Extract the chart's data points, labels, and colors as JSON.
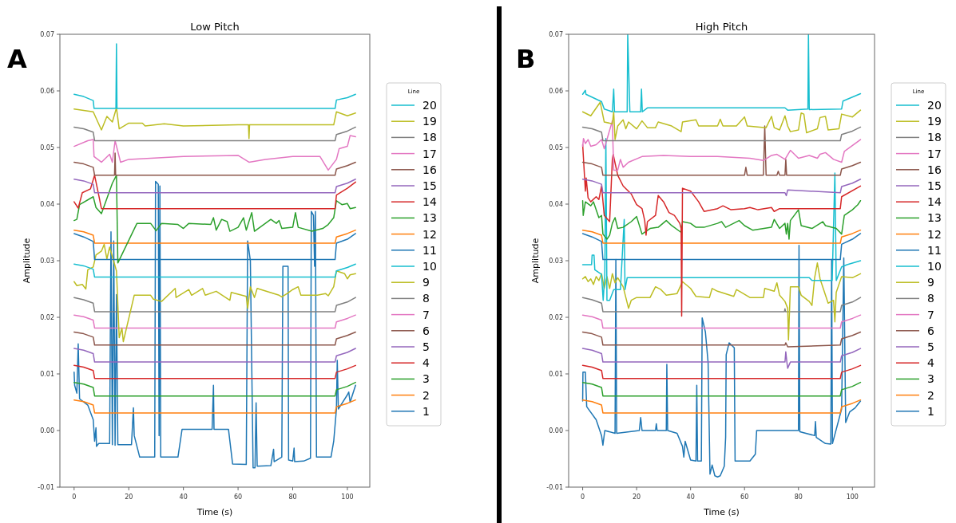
{
  "chart_data": [
    {
      "type": "line",
      "title": "Low Pitch",
      "xlabel": "Time (s)",
      "ylabel": "Amplitude",
      "annotations": [
        "A"
      ],
      "legend": "right",
      "legend_title": "Line",
      "xlim": [
        -5.2,
        108.2
      ],
      "ylim": [
        -0.01,
        0.07
      ],
      "xticks": [
        0,
        20,
        40,
        60,
        80,
        100
      ],
      "yticks": [
        -0.01,
        {
          "value": 0,
          "label": "0.00"
        },
        0.01,
        0.02,
        0.03,
        0.04,
        0.05,
        0.06,
        0.07
      ],
      "series": [
        {
          "name": "1",
          "color": "#1f77b4",
          "x": [
            0,
            0.2,
            1,
            1.5,
            2,
            5,
            7,
            7.5,
            8,
            8.2,
            9,
            13,
            13.5,
            14,
            14.5,
            15,
            15.5,
            16,
            21,
            21.7,
            22,
            24,
            29.5,
            29.8,
            30.8,
            31.1,
            31.4,
            31.7,
            38,
            39.5,
            50.5,
            51,
            51.2,
            56.5,
            58,
            63,
            63.5,
            64.5,
            65.5,
            66.2,
            66.6,
            67,
            72,
            73,
            73.2,
            76,
            76.4,
            78.3,
            78.5,
            80,
            80.5,
            80.7,
            84,
            86.5,
            86.8,
            87.6,
            88,
            88.3,
            88.7,
            94,
            95,
            96,
            96.3,
            96.7,
            100,
            100.5,
            101,
            103
          ],
          "values": [
            0.0103,
            0.008,
            0.0066,
            0.0153,
            0.0056,
            0.0045,
            0.0019,
            -0.0019,
            0.0005,
            -0.0028,
            -0.0023,
            -0.0023,
            0.0351,
            -0.0025,
            0.0335,
            -0.0026,
            0.024,
            -0.0025,
            -0.0025,
            0.004,
            -0.0009,
            -0.0047,
            -0.0047,
            0.044,
            0.0435,
            -0.0009,
            0.0432,
            -0.0047,
            -0.0047,
            0.0002,
            0.0002,
            0.008,
            0.0002,
            0.0002,
            -0.0059,
            -0.006,
            0.0335,
            0.03,
            -0.0066,
            -0.0066,
            0.0049,
            -0.0063,
            -0.0062,
            -0.0033,
            -0.0055,
            -0.0047,
            0.029,
            0.029,
            -0.0052,
            -0.0054,
            -0.0031,
            -0.0055,
            -0.0054,
            -0.0049,
            0.0387,
            0.038,
            0.029,
            0.0387,
            -0.0047,
            -0.0047,
            -0.0019,
            0.0038,
            0.0124,
            0.0038,
            0.0063,
            0.0068,
            0.005,
            0.008
          ]
        },
        {
          "name": "2",
          "color": "#ff7f0e",
          "x": [
            0,
            3.5,
            7,
            7.5,
            95.5,
            96,
            100,
            103
          ],
          "values": [
            0.0054,
            0.0051,
            0.0045,
            0.0031,
            0.0031,
            0.0042,
            0.0048,
            0.0054
          ]
        },
        {
          "name": "3",
          "color": "#2ca02c",
          "x": [
            0,
            3.5,
            7,
            7.5,
            95.5,
            96,
            100,
            103
          ],
          "values": [
            0.0085,
            0.0082,
            0.0076,
            0.0061,
            0.0061,
            0.0072,
            0.0078,
            0.0085
          ]
        },
        {
          "name": "4",
          "color": "#d62728",
          "x": [
            0,
            3.5,
            7,
            7.5,
            95.5,
            96,
            100,
            103
          ],
          "values": [
            0.0115,
            0.0112,
            0.0106,
            0.0092,
            0.0092,
            0.0103,
            0.0109,
            0.0115
          ]
        },
        {
          "name": "5",
          "color": "#9467bd",
          "x": [
            0,
            3.5,
            7,
            7.5,
            95.5,
            96,
            100,
            103
          ],
          "values": [
            0.0145,
            0.0142,
            0.0136,
            0.0121,
            0.0121,
            0.0132,
            0.0138,
            0.0145
          ]
        },
        {
          "name": "6",
          "color": "#8c564b",
          "x": [
            0,
            3.5,
            7,
            7.5,
            95.5,
            96,
            100,
            103
          ],
          "values": [
            0.0174,
            0.0171,
            0.0165,
            0.0151,
            0.0151,
            0.0162,
            0.0168,
            0.0174
          ]
        },
        {
          "name": "7",
          "color": "#e377c2",
          "x": [
            0,
            3.5,
            7,
            7.5,
            95.5,
            96,
            100,
            103
          ],
          "values": [
            0.0204,
            0.0201,
            0.0195,
            0.0181,
            0.0181,
            0.0192,
            0.0198,
            0.0204
          ]
        },
        {
          "name": "8",
          "color": "#7f7f7f",
          "x": [
            0,
            3.5,
            7,
            7.5,
            95.5,
            96,
            100,
            103
          ],
          "values": [
            0.0235,
            0.0231,
            0.0225,
            0.021,
            0.021,
            0.0221,
            0.0227,
            0.0235
          ]
        },
        {
          "name": "9",
          "color": "#bcbd22",
          "x": [
            0,
            1,
            3,
            4.3,
            5,
            7,
            8,
            10,
            11,
            12,
            13,
            15.5,
            16.5,
            17.5,
            18,
            22,
            28,
            29,
            32,
            37,
            37.3,
            42,
            43,
            47,
            48,
            52,
            57,
            57.5,
            63,
            63.5,
            64.5,
            66,
            67,
            75,
            76,
            78,
            80,
            82,
            83,
            89,
            92,
            93,
            95,
            96,
            99,
            100,
            101,
            103
          ],
          "values": [
            0.0263,
            0.0256,
            0.0258,
            0.025,
            0.0284,
            0.0289,
            0.031,
            0.0317,
            0.0329,
            0.0303,
            0.0324,
            0.0282,
            0.0164,
            0.0181,
            0.0157,
            0.0239,
            0.0239,
            0.0232,
            0.0228,
            0.0251,
            0.0235,
            0.0249,
            0.0239,
            0.0251,
            0.0239,
            0.0246,
            0.023,
            0.0244,
            0.0237,
            0.0216,
            0.0254,
            0.0235,
            0.0251,
            0.0239,
            0.0236,
            0.0242,
            0.0249,
            0.0254,
            0.0239,
            0.0239,
            0.0242,
            0.0238,
            0.0254,
            0.0282,
            0.0277,
            0.0268,
            0.0275,
            0.0277
          ]
        },
        {
          "name": "10",
          "color": "#17becf",
          "x": [
            0,
            3.5,
            7,
            7.5,
            95.5,
            96,
            100,
            103
          ],
          "values": [
            0.0294,
            0.0291,
            0.0285,
            0.0271,
            0.0271,
            0.0282,
            0.0288,
            0.0294
          ]
        },
        {
          "name": "11",
          "color": "#1f77b4",
          "x": [
            0,
            3.5,
            7,
            7.5,
            95.5,
            96,
            100,
            103
          ],
          "values": [
            0.0348,
            0.0342,
            0.0334,
            0.0302,
            0.0302,
            0.0331,
            0.0338,
            0.0348
          ]
        },
        {
          "name": "12",
          "color": "#ff7f0e",
          "x": [
            0,
            3.5,
            7,
            7.5,
            95.5,
            96,
            100,
            103
          ],
          "values": [
            0.0354,
            0.0351,
            0.0345,
            0.0331,
            0.0331,
            0.0342,
            0.0348,
            0.0354
          ]
        },
        {
          "name": "13",
          "color": "#2ca02c",
          "x": [
            0,
            1,
            2,
            7,
            8,
            10,
            14,
            15.5,
            16,
            23,
            28,
            30,
            32,
            38,
            40,
            42,
            50,
            51,
            52,
            54,
            56,
            57,
            60,
            62,
            63,
            65,
            66,
            70,
            72,
            74,
            75,
            76,
            80,
            81,
            82,
            87,
            91,
            93,
            95,
            96,
            98,
            100,
            101,
            103
          ],
          "values": [
            0.0371,
            0.0373,
            0.0399,
            0.0413,
            0.0394,
            0.0383,
            0.0437,
            0.0451,
            0.0296,
            0.0366,
            0.0366,
            0.0353,
            0.0366,
            0.0364,
            0.0357,
            0.0366,
            0.0364,
            0.0376,
            0.0354,
            0.0373,
            0.0369,
            0.0352,
            0.0359,
            0.0376,
            0.0354,
            0.0385,
            0.0352,
            0.0366,
            0.0373,
            0.0366,
            0.0371,
            0.0357,
            0.0359,
            0.0385,
            0.0359,
            0.0352,
            0.0357,
            0.0364,
            0.0376,
            0.0406,
            0.0399,
            0.0401,
            0.0392,
            0.0394
          ]
        },
        {
          "name": "14",
          "color": "#d62728",
          "x": [
            0,
            1.5,
            3,
            6,
            7.5,
            9,
            10,
            95.5,
            96,
            100,
            103
          ],
          "values": [
            0.0404,
            0.0393,
            0.042,
            0.0427,
            0.0451,
            0.0416,
            0.0392,
            0.0392,
            0.0416,
            0.0428,
            0.0439
          ]
        },
        {
          "name": "15",
          "color": "#9467bd",
          "x": [
            0,
            3.5,
            7,
            7.5,
            95.5,
            96,
            100,
            103
          ],
          "values": [
            0.0444,
            0.0441,
            0.0435,
            0.042,
            0.042,
            0.0431,
            0.0437,
            0.0444
          ]
        },
        {
          "name": "16",
          "color": "#8c564b",
          "x": [
            0,
            3.5,
            7,
            7.5,
            14.8,
            15,
            15.2,
            95.5,
            96,
            100,
            103
          ],
          "values": [
            0.0474,
            0.0471,
            0.0465,
            0.0451,
            0.0451,
            0.049,
            0.0451,
            0.0451,
            0.0462,
            0.0468,
            0.0474
          ]
        },
        {
          "name": "17",
          "color": "#e377c2",
          "x": [
            0,
            5,
            7,
            7.3,
            10,
            13,
            14,
            15,
            17,
            20,
            40,
            60,
            64,
            70,
            80,
            90,
            93,
            96,
            97,
            100,
            101,
            103
          ],
          "values": [
            0.0502,
            0.0512,
            0.0514,
            0.0484,
            0.0474,
            0.0488,
            0.0474,
            0.0512,
            0.0474,
            0.0479,
            0.0484,
            0.0486,
            0.0474,
            0.0479,
            0.0484,
            0.0484,
            0.046,
            0.0479,
            0.0498,
            0.0502,
            0.0521,
            0.0519
          ]
        },
        {
          "name": "18",
          "color": "#7f7f7f",
          "x": [
            0,
            3.5,
            7,
            7.5,
            95.5,
            96,
            100,
            103
          ],
          "values": [
            0.0536,
            0.0533,
            0.0527,
            0.0512,
            0.0512,
            0.0523,
            0.0529,
            0.0536
          ]
        },
        {
          "name": "19",
          "color": "#bcbd22",
          "x": [
            0,
            7,
            10,
            12,
            14,
            15.5,
            16.5,
            20,
            25,
            26,
            33,
            40,
            60,
            63.8,
            64,
            64.2,
            95,
            96,
            100,
            103
          ],
          "values": [
            0.0568,
            0.0563,
            0.0531,
            0.0555,
            0.0545,
            0.057,
            0.0533,
            0.0543,
            0.0543,
            0.0538,
            0.0542,
            0.0538,
            0.054,
            0.054,
            0.0516,
            0.054,
            0.054,
            0.0563,
            0.0556,
            0.0561
          ]
        },
        {
          "name": "20",
          "color": "#17becf",
          "x": [
            0,
            3.5,
            7,
            7.3,
            7.5,
            15.3,
            15.5,
            15.7,
            95.5,
            96,
            100,
            103
          ],
          "values": [
            0.0594,
            0.059,
            0.0583,
            0.0569,
            0.0569,
            0.0569,
            0.0683,
            0.0569,
            0.0569,
            0.0584,
            0.0588,
            0.0594
          ]
        }
      ]
    },
    {
      "type": "line",
      "title": "High Pitch",
      "xlabel": "Time (s)",
      "ylabel": "Amplitude",
      "annotations": [
        "B"
      ],
      "legend": "right",
      "legend_title": "Line",
      "xlim": [
        -5.2,
        108.2
      ],
      "ylim": [
        -0.01,
        0.07
      ],
      "xticks": [
        0,
        20,
        40,
        60,
        80,
        100
      ],
      "yticks": [
        -0.01,
        {
          "value": 0,
          "label": "0.00"
        },
        0.01,
        0.02,
        0.03,
        0.04,
        0.05,
        0.06,
        0.07
      ],
      "series": [
        {
          "name": "1",
          "color": "#1f77b4",
          "x": [
            0,
            0.1,
            1,
            1.5,
            5,
            7,
            7.5,
            8.2,
            12,
            12.3,
            12.6,
            21,
            21.5,
            22,
            27,
            27.3,
            27.6,
            31,
            31.2,
            31.5,
            35,
            37,
            37.5,
            38,
            40,
            42,
            42.3,
            42.6,
            44,
            44.3,
            45.5,
            46.5,
            47.2,
            48,
            49,
            50,
            51,
            52.5,
            53,
            53.2,
            54.3,
            56.2,
            56.5,
            62,
            64,
            64.5,
            80,
            80.2,
            80.5,
            86,
            86.3,
            86.6,
            90,
            92,
            92.3,
            92.6,
            96,
            96.8,
            97.5,
            99,
            101,
            103
          ],
          "values": [
            0.0052,
            0.0103,
            0.0103,
            0.0042,
            0.0019,
            -0.0009,
            -0.0026,
            0.0,
            -0.0005,
            0.0302,
            -0.0005,
            0.0,
            0.0023,
            0.0,
            0.0,
            0.0012,
            0.0,
            0.0,
            0.0117,
            0.0,
            -0.0005,
            -0.0028,
            -0.0047,
            -0.0019,
            -0.0052,
            -0.0054,
            0.008,
            -0.0054,
            -0.0054,
            0.0199,
            0.0174,
            0.012,
            -0.0077,
            -0.0061,
            -0.008,
            -0.0082,
            -0.008,
            -0.0063,
            -0.0012,
            0.0134,
            0.0155,
            0.0146,
            -0.0054,
            -0.0054,
            -0.0042,
            0.0,
            0.0,
            0.0327,
            -0.0002,
            -0.0009,
            0.0016,
            -0.0012,
            -0.0023,
            -0.0024,
            0.0302,
            -0.0023,
            0.0038,
            0.0305,
            0.0014,
            0.0033,
            0.004,
            0.0052
          ]
        },
        {
          "name": "2",
          "color": "#ff7f0e",
          "x": [
            0,
            3.5,
            7,
            7.5,
            95.5,
            96,
            100,
            103
          ],
          "values": [
            0.0054,
            0.0051,
            0.0045,
            0.0031,
            0.0031,
            0.0042,
            0.0048,
            0.0054
          ]
        },
        {
          "name": "3",
          "color": "#2ca02c",
          "x": [
            0,
            3.5,
            7,
            7.5,
            95.5,
            96,
            100,
            103
          ],
          "values": [
            0.0085,
            0.0082,
            0.0076,
            0.0061,
            0.0061,
            0.0072,
            0.0078,
            0.0085
          ]
        },
        {
          "name": "4",
          "color": "#d62728",
          "x": [
            0,
            3.5,
            7,
            7.5,
            95.5,
            96,
            100,
            103
          ],
          "values": [
            0.0115,
            0.0112,
            0.0106,
            0.0092,
            0.0092,
            0.0103,
            0.0109,
            0.0115
          ]
        },
        {
          "name": "5",
          "color": "#9467bd",
          "x": [
            0,
            3.5,
            7,
            7.5,
            75,
            75.3,
            75.7,
            76,
            77,
            95.5,
            96,
            100,
            103
          ],
          "values": [
            0.0145,
            0.0142,
            0.0136,
            0.0121,
            0.0121,
            0.0139,
            0.0121,
            0.011,
            0.0121,
            0.0121,
            0.0132,
            0.0138,
            0.0145
          ]
        },
        {
          "name": "6",
          "color": "#8c564b",
          "x": [
            0,
            3.5,
            7,
            7.5,
            75,
            75.3,
            76,
            95.5,
            96,
            100,
            103
          ],
          "values": [
            0.0174,
            0.0171,
            0.0165,
            0.0151,
            0.0151,
            0.0155,
            0.0148,
            0.0151,
            0.0162,
            0.0168,
            0.0174
          ]
        },
        {
          "name": "7",
          "color": "#e377c2",
          "x": [
            0,
            3.5,
            7,
            7.5,
            95.5,
            96,
            100,
            103
          ],
          "values": [
            0.0204,
            0.0201,
            0.0195,
            0.0181,
            0.0181,
            0.0192,
            0.0198,
            0.0204
          ]
        },
        {
          "name": "8",
          "color": "#7f7f7f",
          "x": [
            0,
            3.5,
            7,
            7.5,
            74.8,
            75,
            75.2,
            95.5,
            96,
            100,
            103
          ],
          "values": [
            0.0235,
            0.0231,
            0.0225,
            0.021,
            0.021,
            0.0215,
            0.021,
            0.021,
            0.0221,
            0.0227,
            0.0235
          ]
        },
        {
          "name": "9",
          "color": "#bcbd22",
          "x": [
            0,
            1,
            2,
            3,
            4,
            5,
            6,
            7,
            8,
            9,
            10,
            11,
            12,
            13,
            15,
            17,
            18,
            20,
            25,
            27,
            29,
            31,
            35,
            37,
            40,
            42,
            47,
            48,
            50,
            56,
            57,
            62,
            67,
            67.5,
            71,
            72,
            73,
            75,
            76,
            76.3,
            77,
            80,
            81,
            84,
            85,
            86,
            87,
            88,
            91,
            93,
            93.5,
            94,
            96,
            100,
            103
          ],
          "values": [
            0.0268,
            0.0272,
            0.0263,
            0.0268,
            0.0258,
            0.0272,
            0.0265,
            0.0277,
            0.0251,
            0.0272,
            0.0251,
            0.0277,
            0.0261,
            0.027,
            0.0254,
            0.0216,
            0.023,
            0.0235,
            0.0235,
            0.0254,
            0.0249,
            0.0239,
            0.0242,
            0.0263,
            0.0251,
            0.0237,
            0.0235,
            0.0251,
            0.0246,
            0.0237,
            0.0249,
            0.0235,
            0.0235,
            0.0251,
            0.0246,
            0.0261,
            0.0239,
            0.0228,
            0.0216,
            0.016,
            0.0254,
            0.0254,
            0.0239,
            0.0228,
            0.0221,
            0.027,
            0.0296,
            0.0268,
            0.0225,
            0.023,
            0.0192,
            0.0244,
            0.0272,
            0.027,
            0.0277
          ]
        },
        {
          "name": "10",
          "color": "#17becf",
          "x": [
            0,
            3.3,
            3.5,
            4.2,
            4.5,
            7,
            7.6,
            8.2,
            8.6,
            9,
            10,
            11.5,
            14,
            15.4,
            15.7,
            16.5,
            84,
            85,
            92.5,
            93.5,
            94,
            96,
            98,
            103
          ],
          "values": [
            0.0293,
            0.0293,
            0.031,
            0.031,
            0.0284,
            0.0276,
            0.023,
            0.0275,
            0.0516,
            0.023,
            0.023,
            0.0249,
            0.0249,
            0.0373,
            0.0249,
            0.027,
            0.027,
            0.0265,
            0.0265,
            0.0455,
            0.0265,
            0.0289,
            0.0293,
            0.03
          ]
        },
        {
          "name": "11",
          "color": "#1f77b4",
          "x": [
            0,
            3.5,
            7,
            7.5,
            95.5,
            96,
            100,
            103
          ],
          "values": [
            0.0348,
            0.0342,
            0.0334,
            0.0302,
            0.0302,
            0.0329,
            0.0338,
            0.0348
          ]
        },
        {
          "name": "12",
          "color": "#ff7f0e",
          "x": [
            0,
            3.5,
            7,
            7.5,
            95.5,
            96,
            100,
            103
          ],
          "values": [
            0.0354,
            0.0351,
            0.0345,
            0.0331,
            0.0331,
            0.0342,
            0.0348,
            0.0354
          ]
        },
        {
          "name": "13",
          "color": "#2ca02c",
          "x": [
            0,
            0.2,
            1,
            3,
            4,
            6,
            7,
            7.5,
            9,
            10,
            11,
            12,
            13,
            15,
            18,
            20,
            22,
            25,
            28,
            31,
            33,
            36.5,
            37,
            40,
            42,
            45,
            50,
            51.5,
            53,
            58,
            60,
            63,
            70,
            71,
            73,
            75,
            75.5,
            76,
            76.5,
            77,
            80,
            81,
            85,
            89,
            90,
            94,
            96,
            97,
            100,
            102,
            103
          ],
          "values": [
            0.0406,
            0.038,
            0.0404,
            0.0397,
            0.0404,
            0.0376,
            0.038,
            0.0347,
            0.0338,
            0.0345,
            0.0366,
            0.0376,
            0.0357,
            0.0359,
            0.0369,
            0.0378,
            0.0347,
            0.0357,
            0.0359,
            0.0371,
            0.0362,
            0.035,
            0.0369,
            0.0366,
            0.0359,
            0.0359,
            0.0366,
            0.0369,
            0.0359,
            0.0371,
            0.0362,
            0.0354,
            0.0359,
            0.0373,
            0.0357,
            0.0366,
            0.0347,
            0.0366,
            0.0338,
            0.0371,
            0.039,
            0.0362,
            0.0357,
            0.0369,
            0.0362,
            0.0357,
            0.0347,
            0.038,
            0.039,
            0.0399,
            0.0406
          ]
        },
        {
          "name": "14",
          "color": "#d62728",
          "x": [
            0,
            1,
            1.3,
            2,
            3,
            5,
            6,
            7,
            8,
            10,
            11,
            11.3,
            13,
            15,
            18,
            20,
            22,
            23,
            23.5,
            24,
            27,
            28,
            30,
            32,
            34,
            36,
            36.5,
            36.7,
            37,
            40,
            43,
            45,
            50,
            52,
            55,
            60,
            62,
            65,
            70,
            71,
            73,
            95.5,
            96,
            103
          ],
          "values": [
            0.0505,
            0.0423,
            0.0446,
            0.0411,
            0.0404,
            0.0413,
            0.0408,
            0.0432,
            0.038,
            0.0369,
            0.0479,
            0.0488,
            0.0451,
            0.0432,
            0.0418,
            0.0399,
            0.0392,
            0.0371,
            0.0345,
            0.0369,
            0.038,
            0.0415,
            0.0404,
            0.0385,
            0.038,
            0.0366,
            0.0357,
            0.0202,
            0.0428,
            0.0423,
            0.0404,
            0.0387,
            0.0392,
            0.0397,
            0.039,
            0.0392,
            0.0394,
            0.039,
            0.0394,
            0.0387,
            0.0392,
            0.0392,
            0.0413,
            0.0432
          ]
        },
        {
          "name": "15",
          "color": "#9467bd",
          "x": [
            0,
            3.5,
            7,
            7.5,
            75,
            75.5,
            76,
            95.5,
            96,
            100,
            103
          ],
          "values": [
            0.0444,
            0.0441,
            0.0435,
            0.042,
            0.042,
            0.0415,
            0.0425,
            0.042,
            0.0431,
            0.0437,
            0.0444
          ]
        },
        {
          "name": "16",
          "color": "#8c564b",
          "x": [
            0,
            3.5,
            7,
            7.5,
            60,
            60.5,
            61,
            67,
            67.5,
            68,
            72,
            72.5,
            73,
            75,
            75.3,
            75.6,
            95.5,
            96,
            100,
            103
          ],
          "values": [
            0.0474,
            0.0471,
            0.0465,
            0.0451,
            0.0451,
            0.0465,
            0.0451,
            0.0451,
            0.0538,
            0.0451,
            0.0451,
            0.0458,
            0.0451,
            0.0451,
            0.0479,
            0.0451,
            0.0451,
            0.0462,
            0.0468,
            0.0474
          ]
        },
        {
          "name": "17",
          "color": "#e377c2",
          "x": [
            0,
            0.3,
            1,
            2,
            3,
            5,
            7,
            8,
            11,
            11.5,
            13,
            14,
            15,
            17,
            22,
            30,
            40,
            50,
            62,
            67,
            70,
            72,
            75,
            77,
            80,
            84,
            87,
            88,
            90,
            93,
            96,
            97,
            103
          ],
          "values": [
            0.0502,
            0.0516,
            0.0507,
            0.0514,
            0.0502,
            0.0505,
            0.0514,
            0.0498,
            0.0547,
            0.046,
            0.046,
            0.0479,
            0.0465,
            0.0474,
            0.0484,
            0.0486,
            0.0484,
            0.0484,
            0.0481,
            0.0477,
            0.0486,
            0.0488,
            0.0479,
            0.0495,
            0.0481,
            0.0486,
            0.0481,
            0.0488,
            0.0491,
            0.0479,
            0.0474,
            0.0493,
            0.0514
          ]
        },
        {
          "name": "18",
          "color": "#7f7f7f",
          "x": [
            0,
            3.5,
            7,
            7.5,
            95.5,
            96,
            100,
            103
          ],
          "values": [
            0.0536,
            0.0533,
            0.0527,
            0.0512,
            0.0512,
            0.0523,
            0.0529,
            0.0536
          ]
        },
        {
          "name": "19",
          "color": "#bcbd22",
          "x": [
            0,
            3,
            6.5,
            8,
            11,
            11.5,
            12,
            13,
            15,
            16,
            17,
            20,
            22,
            24,
            27,
            28,
            33,
            36.5,
            37,
            42,
            43,
            50,
            51,
            52,
            57,
            60,
            61,
            68,
            70,
            71,
            73,
            75,
            76,
            77,
            80,
            81,
            82,
            83,
            87,
            88,
            90,
            91,
            95,
            96,
            100,
            103
          ],
          "values": [
            0.0563,
            0.0556,
            0.058,
            0.0545,
            0.0542,
            0.0563,
            0.0514,
            0.0538,
            0.0549,
            0.0533,
            0.0545,
            0.0533,
            0.0547,
            0.0535,
            0.0535,
            0.0545,
            0.0538,
            0.0528,
            0.0545,
            0.0549,
            0.0538,
            0.0538,
            0.055,
            0.0538,
            0.0538,
            0.0554,
            0.0538,
            0.0535,
            0.0555,
            0.0535,
            0.0531,
            0.0556,
            0.0538,
            0.0528,
            0.0531,
            0.0561,
            0.0559,
            0.0526,
            0.0533,
            0.0553,
            0.0555,
            0.0531,
            0.0533,
            0.0559,
            0.0554,
            0.0566
          ]
        },
        {
          "name": "20",
          "color": "#17becf",
          "x": [
            0,
            1,
            1.2,
            7,
            8,
            11,
            11.5,
            11.8,
            16.5,
            16.7,
            17.5,
            21.5,
            21.8,
            22.1,
            24,
            75,
            76,
            83.5,
            83.7,
            84,
            96,
            96.5,
            103
          ],
          "values": [
            0.0594,
            0.0601,
            0.0594,
            0.0581,
            0.0568,
            0.0563,
            0.0603,
            0.0563,
            0.0563,
            0.07,
            0.0563,
            0.0563,
            0.0603,
            0.0563,
            0.057,
            0.057,
            0.0566,
            0.0568,
            0.07,
            0.0567,
            0.0568,
            0.0582,
            0.0595
          ]
        }
      ]
    }
  ]
}
